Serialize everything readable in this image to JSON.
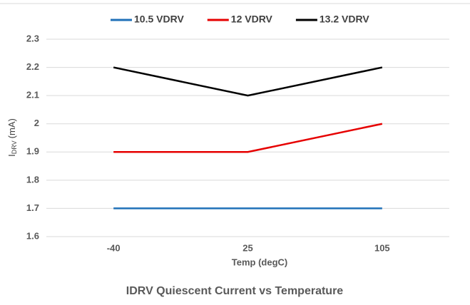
{
  "chart_data": {
    "type": "line",
    "title": "IDRV Quiescent Current vs Temperature",
    "xlabel": "Temp (degC)",
    "ylabel": {
      "main": "I",
      "sub": "DRV",
      "unit": "(mA)"
    },
    "categories": [
      "-40",
      "25",
      "105"
    ],
    "series": [
      {
        "name": "10.5 VDRV",
        "color": "#1f70b8",
        "values": [
          1.7,
          1.7,
          1.7
        ]
      },
      {
        "name": "12 VDRV",
        "color": "#e60000",
        "values": [
          1.9,
          1.9,
          2.0
        ]
      },
      {
        "name": "13.2 VDRV",
        "color": "#000000",
        "values": [
          2.2,
          2.1,
          2.2
        ]
      }
    ],
    "ylim": [
      1.6,
      2.3
    ],
    "yticks": [
      1.6,
      1.7,
      1.8,
      1.9,
      2,
      2.1,
      2.2,
      2.3
    ],
    "grid": true,
    "legend": "top"
  }
}
